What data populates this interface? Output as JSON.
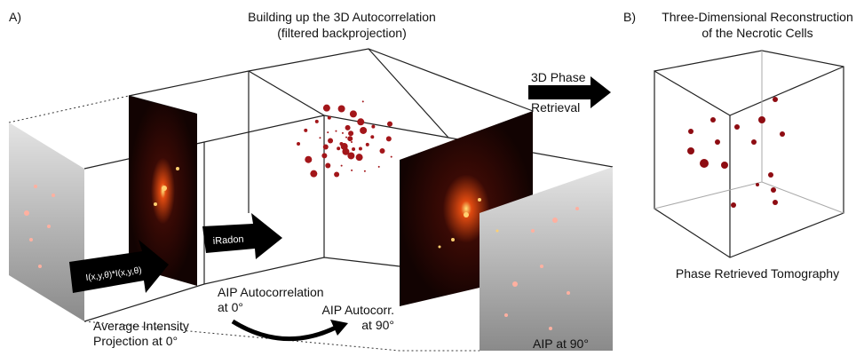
{
  "panel_a": {
    "label": "A)",
    "title": [
      "Building up the 3D Autocorrelation",
      "(filtered backprojection)"
    ],
    "arrow_formula": "I(x,y,θ)*I(x,y,θ)",
    "arrow_iradon": "iRadon",
    "aip_projection": [
      "Average Intensity",
      "Projection at 0°"
    ],
    "aip_autocorrelation": [
      "AIP Autocorrelation",
      "at 0°"
    ],
    "aip_autocorr_90": [
      "AIP Autocorr.",
      "at 90°"
    ],
    "aip_90": "AIP at 90°",
    "phase_retrieval": [
      "3D Phase",
      "Retrieval"
    ]
  },
  "panel_b": {
    "label": "B)",
    "title": [
      "Three-Dimensional Reconstruction",
      "of the Necrotic Cells"
    ],
    "caption": "Phase Retrieved Tomography"
  }
}
